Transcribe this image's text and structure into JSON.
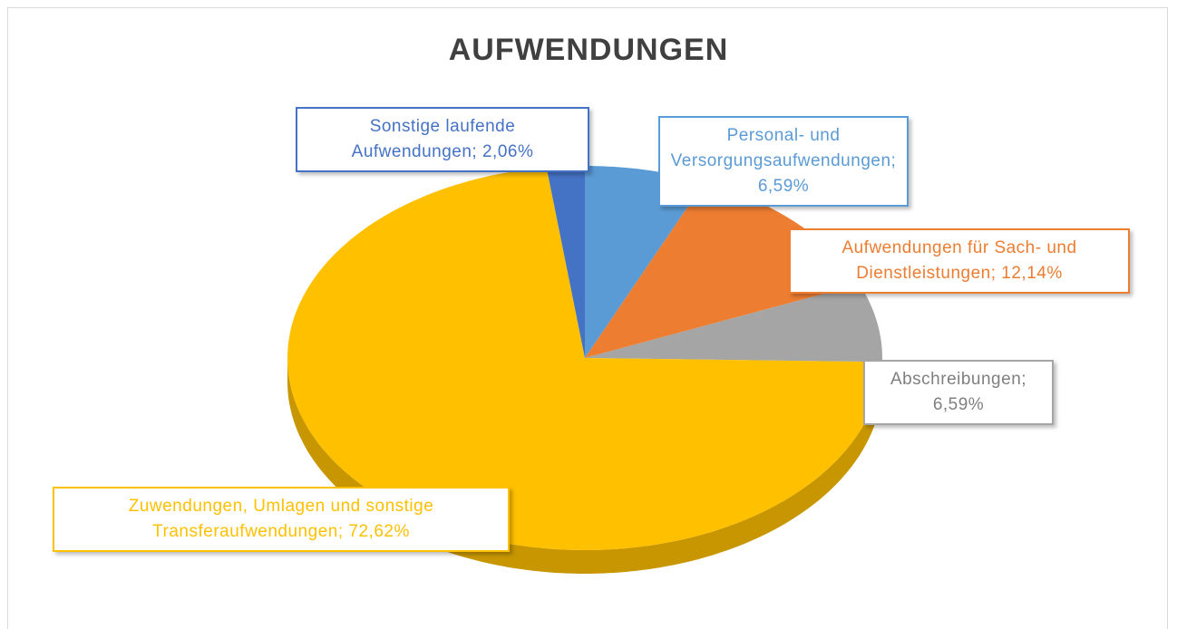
{
  "chart_data": {
    "type": "pie",
    "title": "AUFWENDUNGEN",
    "categories": [
      "Personal- und Versorgungsaufwendungen",
      "Aufwendungen für Sach- und Dienstleistungen",
      "Abschreibungen",
      "Zuwendungen, Umlagen und sonstige Transferaufwendungen",
      "Sonstige laufende Aufwendungen"
    ],
    "values": [
      6.59,
      12.14,
      6.59,
      72.62,
      2.06
    ],
    "value_labels": [
      "6,59%",
      "12,14%",
      "6,59%",
      "72,62%",
      "2,06%"
    ],
    "label_separator": ";",
    "colors": [
      "#5b9bd5",
      "#ed7d31",
      "#a5a5a5",
      "#ffc000",
      "#4472c4"
    ]
  }
}
